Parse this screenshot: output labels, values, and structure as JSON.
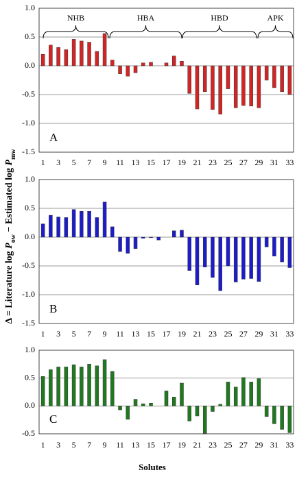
{
  "chart_data": [
    {
      "type": "bar",
      "annotation": "A",
      "group_labels": [
        "NHB",
        "HBA",
        "HBD",
        "APK"
      ],
      "categories": [
        1,
        null,
        3,
        null,
        5,
        null,
        7,
        null,
        9,
        null,
        11,
        null,
        13,
        null,
        15,
        null,
        17,
        null,
        19,
        null,
        21,
        null,
        23,
        null,
        25,
        null,
        27,
        null,
        29,
        null,
        31,
        null,
        33
      ],
      "values": [
        0.2,
        0.36,
        0.32,
        0.28,
        0.46,
        0.43,
        0.41,
        0.25,
        0.56,
        0.1,
        -0.14,
        -0.18,
        -0.12,
        0.05,
        0.06,
        0,
        0.05,
        0.17,
        0.08,
        -0.48,
        -0.75,
        -0.45,
        -0.76,
        -0.84,
        -0.4,
        -0.73,
        -0.69,
        -0.7,
        -0.73,
        -0.25,
        -0.38,
        -0.45,
        -0.5
      ],
      "color": "#d42424",
      "ylim": [
        -1.5,
        1.0
      ],
      "yticks": [
        {
          "value": 1.0,
          "label": "1.0"
        },
        {
          "value": 0.5,
          "label": "0.5"
        },
        {
          "value": 0,
          "label": "0.0"
        },
        {
          "value": -0.5,
          "label": "-0.5"
        },
        {
          "value": -1.0,
          "label": "-1.0"
        },
        {
          "value": -1.5,
          "label": "-1.5"
        }
      ],
      "grid": true
    },
    {
      "type": "bar",
      "annotation": "B",
      "categories": [
        1,
        null,
        3,
        null,
        5,
        null,
        7,
        null,
        9,
        null,
        11,
        null,
        13,
        null,
        15,
        null,
        17,
        null,
        19,
        null,
        21,
        null,
        23,
        null,
        25,
        null,
        27,
        null,
        29,
        null,
        31,
        null,
        33
      ],
      "values": [
        0.23,
        0.38,
        0.35,
        0.34,
        0.48,
        0.45,
        0.45,
        0.34,
        0.61,
        0.18,
        -0.25,
        -0.28,
        -0.2,
        -0.02,
        -0.01,
        -0.05,
        0,
        0.11,
        0.12,
        -0.58,
        -0.83,
        -0.52,
        -0.7,
        -0.93,
        -0.5,
        -0.78,
        -0.73,
        -0.72,
        -0.77,
        -0.17,
        -0.33,
        -0.43,
        -0.53
      ],
      "color": "#1c1ccc",
      "ylim": [
        -1.5,
        1.0
      ],
      "yticks": [
        {
          "value": 1.0,
          "label": "1.0"
        },
        {
          "value": 0.5,
          "label": "0.5"
        },
        {
          "value": 0,
          "label": "0.0"
        },
        {
          "value": -0.5,
          "label": "-0.5"
        },
        {
          "value": -1.0,
          "label": "-1.0"
        },
        {
          "value": -1.5,
          "label": "-1.5"
        }
      ],
      "grid": true
    },
    {
      "type": "bar",
      "annotation": "C",
      "categories": [
        1,
        null,
        3,
        null,
        5,
        null,
        7,
        null,
        9,
        null,
        11,
        null,
        13,
        null,
        15,
        null,
        17,
        null,
        19,
        null,
        21,
        null,
        23,
        null,
        25,
        null,
        27,
        null,
        29,
        null,
        31,
        null,
        33
      ],
      "values": [
        0.53,
        0.65,
        0.7,
        0.7,
        0.74,
        0.7,
        0.75,
        0.72,
        0.83,
        0.62,
        -0.07,
        -0.24,
        0.12,
        0.04,
        0.05,
        0,
        0.27,
        0.16,
        0.41,
        -0.27,
        -0.18,
        -0.49,
        -0.1,
        0.03,
        0.43,
        0.34,
        0.51,
        0.43,
        0.49,
        -0.19,
        -0.32,
        -0.42,
        -0.48
      ],
      "color": "#1f7a1f",
      "ylim": [
        -0.5,
        1.0
      ],
      "yticks": [
        {
          "value": 1.0,
          "label": "1.0"
        },
        {
          "value": 0.5,
          "label": "0.5"
        },
        {
          "value": 0,
          "label": "0.0"
        },
        {
          "value": -0.5,
          "label": "-0.5"
        }
      ],
      "grid": true
    }
  ],
  "x_label": "Solutes",
  "y_label": [
    "Δ = Literature log ",
    "P",
    "ow",
    " − Estimated log ",
    "P",
    "mw"
  ]
}
